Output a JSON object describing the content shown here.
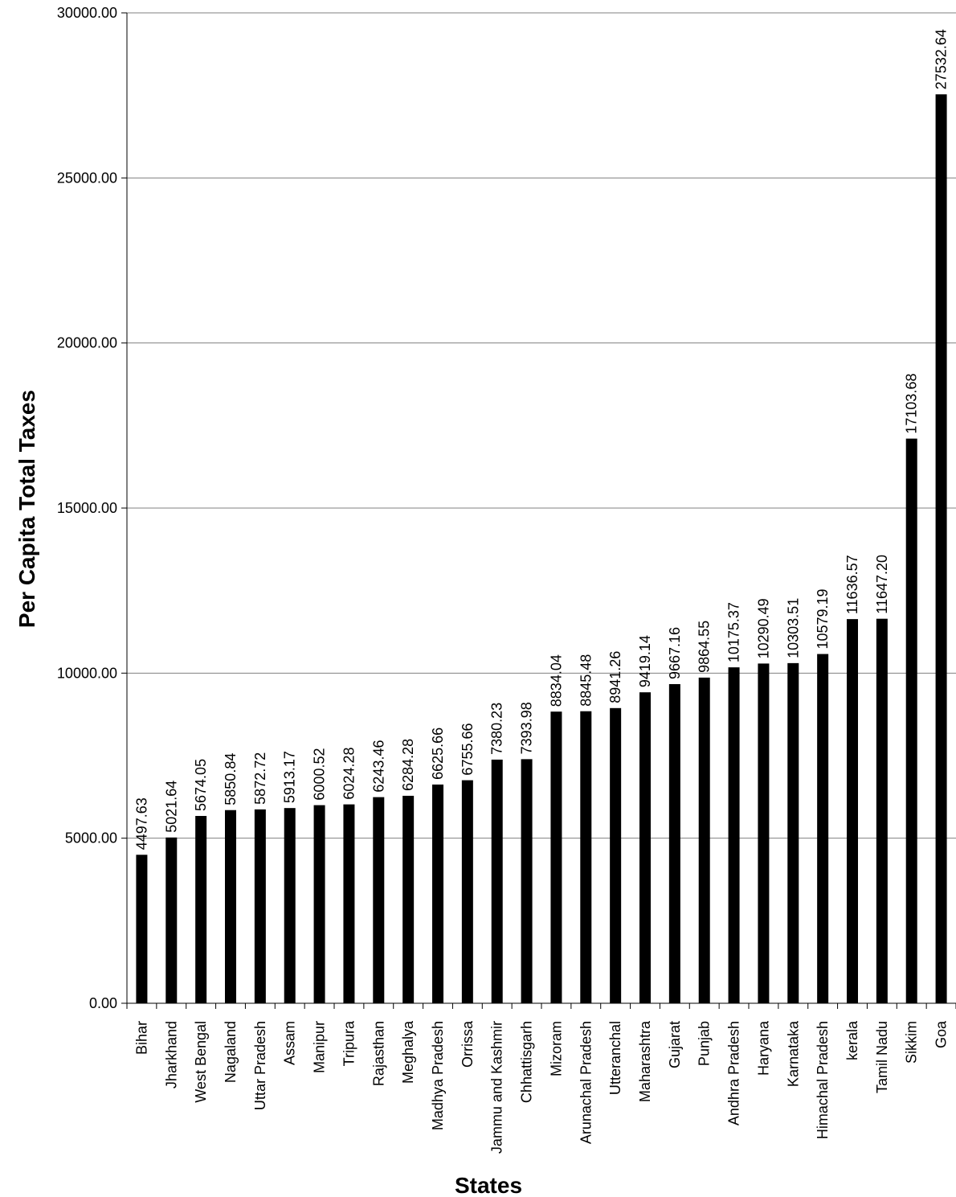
{
  "chart_data": {
    "type": "bar",
    "xlabel": "States",
    "ylabel": "Per Capita Total Taxes",
    "ylim": [
      0,
      30000
    ],
    "yticks": [
      "0.00",
      "5000.00",
      "10000.00",
      "15000.00",
      "20000.00",
      "25000.00",
      "30000.00"
    ],
    "grid": true,
    "colors": {
      "bar": "#000000",
      "grid": "#808080",
      "axis": "#000000"
    },
    "categories": [
      "Bihar",
      "Jharkhand",
      "West Bengal",
      "Nagaland",
      "Uttar Pradesh",
      "Assam",
      "Manipur",
      "Tripura",
      "Rajasthan",
      "Meghalya",
      "Madhya Pradesh",
      "Orrissa",
      "Jammu and Kashmir",
      "Chhattisgarh",
      "Mizoram",
      "Arunachal Pradesh",
      "Utteranchal",
      "Maharashtra",
      "Gujarat",
      "Punjab",
      "Andhra Pradesh",
      "Haryana",
      "Karnataka",
      "Himachal Pradesh",
      "kerala",
      "Tamil Nadu",
      "Sikkim",
      "Goa"
    ],
    "values": [
      4497.63,
      5021.64,
      5674.05,
      5850.84,
      5872.72,
      5913.17,
      6000.52,
      6024.28,
      6243.46,
      6284.28,
      6625.66,
      6755.66,
      7380.23,
      7393.98,
      8834.04,
      8845.48,
      8941.26,
      9419.14,
      9667.16,
      9864.55,
      10175.37,
      10290.49,
      10303.51,
      10579.19,
      11636.57,
      11647.2,
      17103.68,
      27532.64
    ],
    "data_labels": [
      "4497.63",
      "5021.64",
      "5674.05",
      "5850.84",
      "5872.72",
      "5913.17",
      "6000.52",
      "6024.28",
      "6243.46",
      "6284.28",
      "6625.66",
      "6755.66",
      "7380.23",
      "7393.98",
      "8834.04",
      "8845.48",
      "8941.26",
      "9419.14",
      "9667.16",
      "9864.55",
      "10175.37",
      "10290.49",
      "10303.51",
      "10579.19",
      "11636.57",
      "11647.20",
      "17103.68",
      "27532.64"
    ]
  }
}
